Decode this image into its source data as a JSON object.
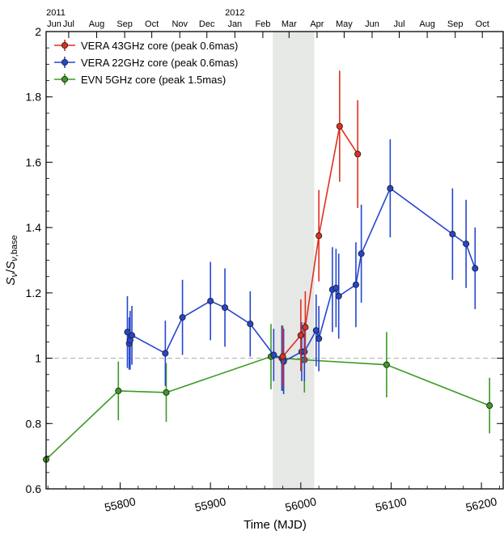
{
  "chart_data": {
    "type": "line",
    "xlabel": "Time (MJD)",
    "ylabel": "Sν/Sν,base",
    "ylabel_parts": {
      "s": "S",
      "nu": "ν",
      "slash": "/",
      "base": ",base"
    },
    "xlim": [
      55718,
      56225
    ],
    "ylim": [
      0.6,
      2.0
    ],
    "x_ticks": [
      55800,
      55900,
      56000,
      56100,
      56200
    ],
    "y_ticks": [
      0.6,
      0.8,
      1.0,
      1.2,
      1.4,
      1.6,
      1.8,
      2.0
    ],
    "top_months": [
      {
        "mjd": 55713,
        "label": "Jun"
      },
      {
        "mjd": 55743,
        "label": "Jul"
      },
      {
        "mjd": 55774,
        "label": "Aug"
      },
      {
        "mjd": 55805,
        "label": "Sep"
      },
      {
        "mjd": 55835,
        "label": "Oct"
      },
      {
        "mjd": 55866,
        "label": "Nov"
      },
      {
        "mjd": 55896,
        "label": "Dec"
      },
      {
        "mjd": 55927,
        "label": "Jan"
      },
      {
        "mjd": 55958,
        "label": "Feb"
      },
      {
        "mjd": 55987,
        "label": "Mar"
      },
      {
        "mjd": 56018,
        "label": "Apr"
      },
      {
        "mjd": 56048,
        "label": "May"
      },
      {
        "mjd": 56079,
        "label": "Jun"
      },
      {
        "mjd": 56109,
        "label": "Jul"
      },
      {
        "mjd": 56140,
        "label": "Aug"
      },
      {
        "mjd": 56171,
        "label": "Sep"
      },
      {
        "mjd": 56201,
        "label": "Oct"
      }
    ],
    "top_years": [
      {
        "mjd": 55713,
        "label": "2011"
      },
      {
        "mjd": 55927,
        "label": "2012"
      }
    ],
    "shaded_region": [
      55969,
      56015
    ],
    "reference_line": 1.0,
    "series": [
      {
        "name": "VERA 43GHz core (peak 0.6mas)",
        "color": "#e0301e",
        "x": [
          55980,
          56000,
          56005,
          56020,
          56043,
          56063
        ],
        "y": [
          1.005,
          1.07,
          1.095,
          1.375,
          1.71,
          1.625
        ],
        "err": [
          0.09,
          0.11,
          0.11,
          0.14,
          0.17,
          0.165
        ]
      },
      {
        "name": "VERA 22GHz core (peak 0.6mas)",
        "color": "#2546d0",
        "x": [
          55808,
          55810,
          55811,
          55813,
          55850,
          55869,
          55900,
          55916,
          55944,
          55970,
          55979,
          55981,
          56001,
          56004,
          56017,
          56020,
          56035,
          56039,
          56042,
          56061,
          56067,
          56099,
          56168,
          56183,
          56193
        ],
        "y": [
          1.08,
          1.045,
          1.055,
          1.07,
          1.015,
          1.125,
          1.175,
          1.155,
          1.105,
          1.01,
          1.0,
          0.99,
          1.02,
          1.02,
          1.085,
          1.06,
          1.21,
          1.215,
          1.19,
          1.225,
          1.32,
          1.52,
          1.38,
          1.35,
          1.275
        ],
        "err": [
          0.11,
          0.08,
          0.09,
          0.09,
          0.1,
          0.115,
          0.12,
          0.12,
          0.1,
          0.08,
          0.1,
          0.1,
          0.09,
          0.09,
          0.11,
          0.1,
          0.13,
          0.12,
          0.13,
          0.13,
          0.15,
          0.15,
          0.14,
          0.135,
          0.125
        ]
      },
      {
        "name": "EVN 5GHz core (peak 1.5mas)",
        "color": "#3a9a22",
        "x": [
          55718,
          55798,
          55851,
          55967,
          55980,
          56004,
          56095,
          56209
        ],
        "y": [
          0.69,
          0.9,
          0.895,
          1.005,
          1.0,
          0.995,
          0.98,
          0.855
        ],
        "err": [
          0.0,
          0.09,
          0.09,
          0.1,
          0.1,
          0.1,
          0.1,
          0.085
        ]
      }
    ]
  }
}
